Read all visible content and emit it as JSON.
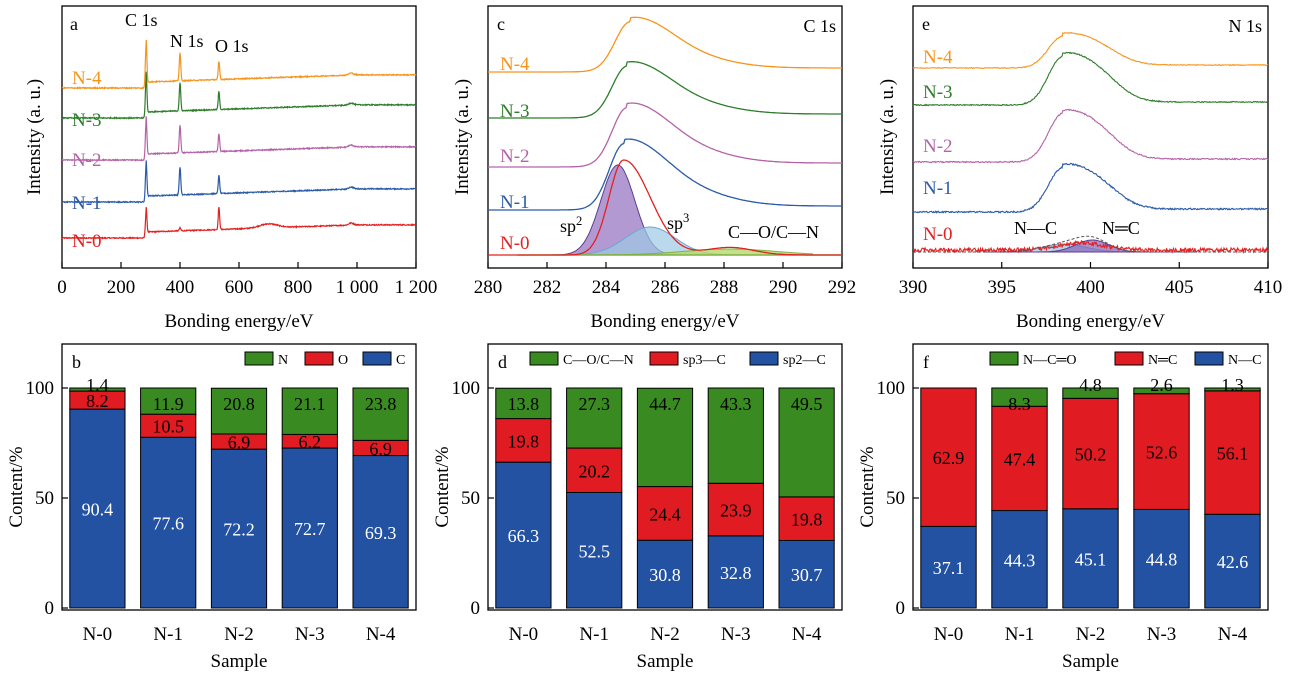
{
  "colors": {
    "N-0": "#e32121",
    "N-1": "#2b5aa8",
    "N-2": "#b463a8",
    "N-3": "#2e7d2a",
    "N-4": "#f7941d",
    "bar_blue": "#2352a3",
    "bar_red": "#e11b22",
    "bar_green": "#3a8a22"
  },
  "chart_data": [
    {
      "panel": "a",
      "type": "line",
      "xlabel": "Bonding energy/eV",
      "ylabel": "Intensity (a. u.)",
      "xlim": [
        0,
        1200
      ],
      "xticks": [
        0,
        200,
        400,
        600,
        800,
        1000,
        1200
      ],
      "xtick_labels": [
        "0",
        "200",
        "400",
        "600",
        "800",
        "1 000",
        "1 200"
      ],
      "peak_labels": [
        {
          "text": "C 1s",
          "x": 285
        },
        {
          "text": "N 1s",
          "x": 400
        },
        {
          "text": "O 1s",
          "x": 532
        }
      ],
      "series": [
        {
          "name": "N-0",
          "offset": 0.0
        },
        {
          "name": "N-1",
          "offset": 0.3
        },
        {
          "name": "N-2",
          "offset": 0.5
        },
        {
          "name": "N-3",
          "offset": 0.7
        },
        {
          "name": "N-4",
          "offset": 0.9
        }
      ]
    },
    {
      "panel": "c",
      "type": "line",
      "title": "C 1s",
      "xlabel": "Bonding energy/eV",
      "ylabel": "Intensity (a. u.)",
      "xlim": [
        280,
        292
      ],
      "xticks": [
        280,
        282,
        284,
        286,
        288,
        290,
        292
      ],
      "peak_labels": [
        {
          "text": "sp2",
          "x": 283.4
        },
        {
          "text": "sp3",
          "x": 286.2
        },
        {
          "text": "C—O/C—N",
          "x": 289.3
        }
      ],
      "fit_components": [
        {
          "label": "sp2",
          "center": 284.4,
          "height": 0.9,
          "width": 0.75
        },
        {
          "label": "sp3",
          "center": 285.5,
          "height": 0.28,
          "width": 1.1
        },
        {
          "label": "C—O/C—N",
          "center": 288.2,
          "height": 0.06,
          "width": 2.0
        }
      ],
      "series": [
        {
          "name": "N-0",
          "peak": 284.6,
          "offset": 0.0
        },
        {
          "name": "N-1",
          "peak": 284.6,
          "offset": 0.22
        },
        {
          "name": "N-2",
          "peak": 284.7,
          "offset": 0.42
        },
        {
          "name": "N-3",
          "peak": 284.7,
          "offset": 0.64
        },
        {
          "name": "N-4",
          "peak": 284.8,
          "offset": 0.85
        }
      ]
    },
    {
      "panel": "e",
      "type": "line",
      "title": "N 1s",
      "xlabel": "Bonding energy/eV",
      "ylabel": "Intensity (a. u.)",
      "xlim": [
        390,
        410
      ],
      "xticks": [
        390,
        395,
        400,
        405,
        410
      ],
      "peak_labels": [
        {
          "text": "N—C",
          "x": 397.6
        },
        {
          "text": "N═C",
          "x": 401.1
        }
      ],
      "fit_components": [
        {
          "label": "N—C",
          "center": 398.5,
          "height": 0.05,
          "width": 1.6
        },
        {
          "label": "N═C",
          "center": 400.1,
          "height": 0.05,
          "width": 1.2
        }
      ],
      "series": [
        {
          "name": "N-0",
          "offset": 0.0
        },
        {
          "name": "N-1",
          "offset": 0.22
        },
        {
          "name": "N-2",
          "offset": 0.44
        },
        {
          "name": "N-3",
          "offset": 0.62
        },
        {
          "name": "N-4",
          "offset": 0.78
        }
      ]
    },
    {
      "panel": "b",
      "type": "bar",
      "stacked": true,
      "xlabel": "Sample",
      "ylabel": "Content/%",
      "ylim": [
        0,
        100
      ],
      "yticks": [
        0,
        50,
        100
      ],
      "categories": [
        "N-0",
        "N-1",
        "N-2",
        "N-3",
        "N-4"
      ],
      "legend": [
        "N",
        "O",
        "C"
      ],
      "series": [
        {
          "name": "C",
          "values": [
            90.4,
            77.6,
            72.2,
            72.7,
            69.3
          ]
        },
        {
          "name": "O",
          "values": [
            8.2,
            10.5,
            6.9,
            6.2,
            6.9
          ]
        },
        {
          "name": "N",
          "values": [
            1.4,
            11.9,
            20.8,
            21.1,
            23.8
          ]
        }
      ]
    },
    {
      "panel": "d",
      "type": "bar",
      "stacked": true,
      "xlabel": "Sample",
      "ylabel": "Content/%",
      "ylim": [
        0,
        100
      ],
      "yticks": [
        0,
        50,
        100
      ],
      "categories": [
        "N-0",
        "N-1",
        "N-2",
        "N-3",
        "N-4"
      ],
      "legend": [
        "C—O/C—N",
        "sp3—C",
        "sp2—C"
      ],
      "series": [
        {
          "name": "sp2—C",
          "values": [
            66.3,
            52.5,
            30.8,
            32.8,
            30.7
          ]
        },
        {
          "name": "sp3—C",
          "values": [
            19.8,
            20.2,
            24.4,
            23.9,
            19.8
          ]
        },
        {
          "name": "C—O/C—N",
          "values": [
            13.8,
            27.3,
            44.7,
            43.3,
            49.5
          ]
        }
      ]
    },
    {
      "panel": "f",
      "type": "bar",
      "stacked": true,
      "xlabel": "Sample",
      "ylabel": "Content/%",
      "ylim": [
        0,
        100
      ],
      "yticks": [
        0,
        50,
        100
      ],
      "categories": [
        "N-0",
        "N-1",
        "N-2",
        "N-3",
        "N-4"
      ],
      "legend": [
        "N—C═O",
        "N═C",
        "N—C"
      ],
      "series": [
        {
          "name": "N—C",
          "values": [
            37.1,
            44.3,
            45.1,
            44.8,
            42.6
          ]
        },
        {
          "name": "N═C",
          "values": [
            62.9,
            47.4,
            50.2,
            52.6,
            56.1
          ]
        },
        {
          "name": "N—C═O",
          "values": [
            null,
            8.3,
            4.8,
            2.6,
            1.3
          ]
        }
      ]
    }
  ]
}
